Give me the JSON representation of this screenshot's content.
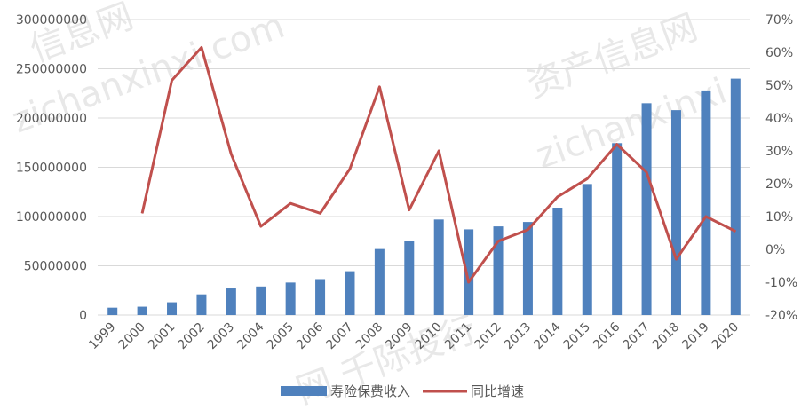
{
  "chart_data": {
    "type": "bar",
    "categories": [
      "1999",
      "2000",
      "2001",
      "2002",
      "2003",
      "2004",
      "2005",
      "2006",
      "2007",
      "2008",
      "2009",
      "2010",
      "2011",
      "2012",
      "2013",
      "2014",
      "2015",
      "2016",
      "2017",
      "2018",
      "2019",
      "2020"
    ],
    "series": [
      {
        "name": "寿险保费收入",
        "type": "bar",
        "axis": "left",
        "color": "#4f81bd",
        "values": [
          7500000,
          8500000,
          13000000,
          21000000,
          27000000,
          29000000,
          33000000,
          36500000,
          44500000,
          67000000,
          75000000,
          97000000,
          87000000,
          90000000,
          94500000,
          109000000,
          133000000,
          174500000,
          215000000,
          208000000,
          228000000,
          240000000
        ]
      },
      {
        "name": "同比增速",
        "type": "line",
        "axis": "right",
        "color": "#c0504d",
        "values": [
          null,
          11,
          51.5,
          61.5,
          29,
          7,
          14,
          11,
          24.5,
          49.5,
          12,
          30,
          -10,
          2.5,
          6,
          16,
          21.5,
          32,
          23.5,
          -3,
          10,
          5.5
        ]
      }
    ],
    "y_left": {
      "ylim": [
        0,
        300000000
      ],
      "ticks": [
        "0",
        "50000000",
        "100000000",
        "150000000",
        "200000000",
        "250000000",
        "300000000"
      ]
    },
    "y_right": {
      "ylim": [
        -20,
        70
      ],
      "ticks": [
        "-20%",
        "-10%",
        "0%",
        "10%",
        "20%",
        "30%",
        "40%",
        "50%",
        "60%",
        "70%"
      ]
    },
    "grid": true,
    "legend": "bottom-center",
    "watermark_texts": [
      "信息网",
      "zichanxinxi.com",
      "资产信息网",
      "zichanxinxi",
      "网 千际投行"
    ]
  }
}
